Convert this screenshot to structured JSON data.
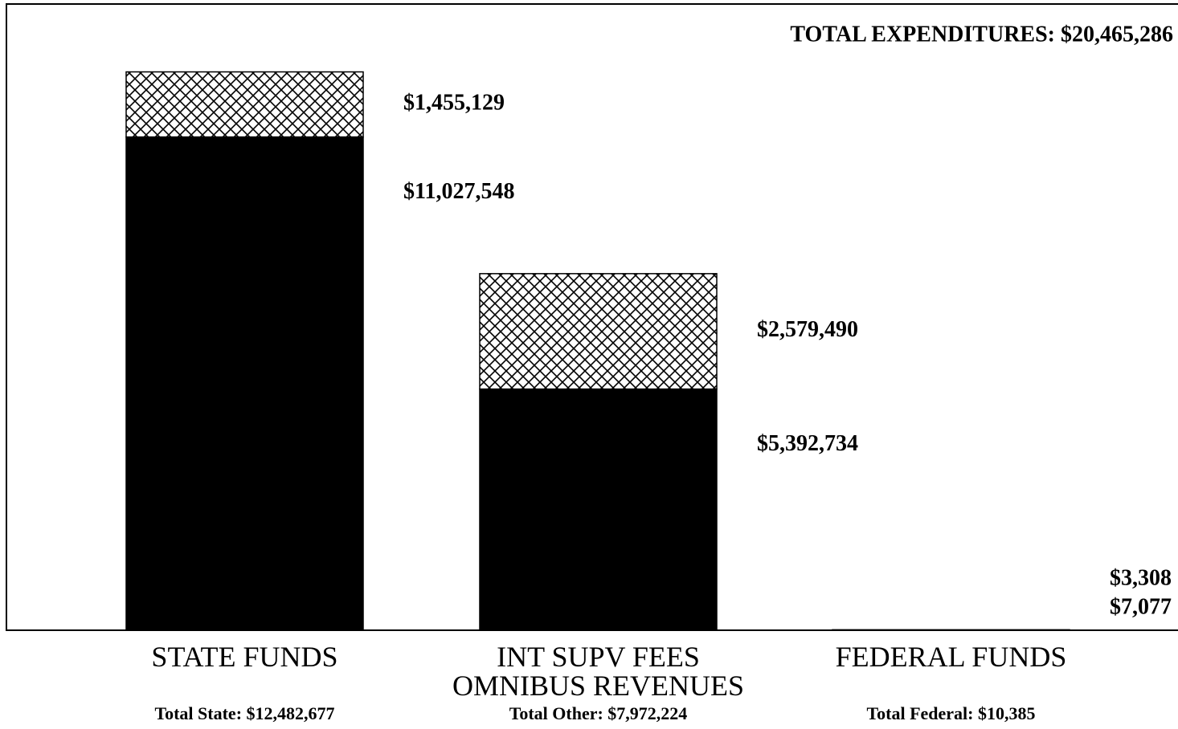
{
  "chart_data": {
    "type": "stacked_bar",
    "annotation": "TOTAL EXPENDITURES: $20,465,286",
    "categories": [
      "STATE FUNDS",
      "INT SUPV FEES OMNIBUS REVENUES",
      "FEDERAL FUNDS"
    ],
    "totals": [
      "Total State: $12,482,677",
      "Total Other: $7,972,224",
      "Total Federal: $10,385"
    ],
    "series": [
      {
        "color": "#000000",
        "pattern": "solid",
        "values": [
          11027548,
          5392734,
          7077
        ],
        "value_labels": [
          "$11,027,548",
          "$5,392,734",
          "$7,077"
        ]
      },
      {
        "color": "#000000",
        "pattern": "crosshatch",
        "values": [
          1455129,
          2579490,
          3308
        ],
        "value_labels": [
          "$1,455,129",
          "$2,579,490",
          "$3,308"
        ]
      }
    ],
    "ylim": [
      0,
      14000000
    ]
  }
}
